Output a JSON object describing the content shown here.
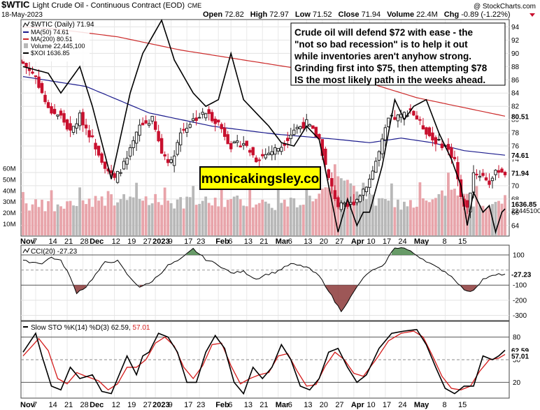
{
  "header": {
    "symbol": "$WTIC",
    "name": "Light Crude Oil - Continuous Contract (EOD)",
    "exchange": "CME",
    "date": "18-May-2023",
    "watermark": "@ StockCharts.com",
    "open_label": "Open",
    "open": "72.82",
    "high_label": "High",
    "high": "72.97",
    "low_label": "Low",
    "low": "71.52",
    "close_label": "Close",
    "close": "71.94",
    "volume_label": "Volume",
    "volume": "22.4M",
    "chg_label": "Chg",
    "chg": "-0.89 (-1.22%)"
  },
  "legend": {
    "main": "$WTIC (Daily) 71.94",
    "ma50": "MA(50) 74.61",
    "ma200": "MA(200) 80.51",
    "volume": "Volume 22,445,100",
    "xoi": "$XOI 1636.85"
  },
  "annotation": {
    "lines": [
      "Crude oil will defend $72 with ease - the",
      "\"not so bad recession\" is to help it out",
      "while inventories aren't anyhow strong.",
      "Grinding first into $75, then attempting $78",
      "IS the most likely path in the weeks ahead."
    ]
  },
  "watermark_box": "monicakingsley.co",
  "colors": {
    "up": "#222222",
    "down": "#c8102e",
    "ma50": "#1a1a8c",
    "ma200": "#cc2b2b",
    "vol_up": "#b8b8b8",
    "vol_down": "#e8a4aa",
    "cci_fill_pos": "#4e8a4e",
    "cci_fill_neg": "#8c3a3a",
    "sto_k": "#000000",
    "sto_d": "#d41c1c"
  },
  "chart_data": [
    {
      "type": "candlestick",
      "name": "price",
      "y_ticks": [
        64,
        66,
        68,
        70,
        72,
        74,
        76,
        78,
        80,
        82,
        84,
        86,
        88,
        90,
        92,
        94
      ],
      "ylim": [
        62.5,
        95
      ],
      "last_labels": {
        "close": "71.94",
        "ma50": "74.61",
        "ma200": "80.51",
        "xoi": "1636.85",
        "volume": "22445100"
      },
      "volume_ticks": [
        "10M",
        "20M",
        "30M",
        "40M",
        "50M",
        "60M"
      ],
      "close_anchors": [
        [
          0,
          88.5
        ],
        [
          4,
          86.5
        ],
        [
          8,
          81.5
        ],
        [
          12,
          80.5
        ],
        [
          15,
          78
        ],
        [
          18,
          80.5
        ],
        [
          22,
          77
        ],
        [
          26,
          73
        ],
        [
          29,
          71
        ],
        [
          33,
          74
        ],
        [
          37,
          79
        ],
        [
          41,
          80
        ],
        [
          44,
          75
        ],
        [
          47,
          73.5
        ],
        [
          50,
          78
        ],
        [
          54,
          80
        ],
        [
          58,
          81
        ],
        [
          62,
          79.5
        ],
        [
          66,
          76
        ],
        [
          70,
          76.5
        ],
        [
          74,
          74
        ],
        [
          78,
          75
        ],
        [
          82,
          76
        ],
        [
          86,
          78.5
        ],
        [
          90,
          79.5
        ],
        [
          94,
          77
        ],
        [
          97,
          71
        ],
        [
          100,
          67
        ],
        [
          103,
          66.8
        ],
        [
          106,
          68
        ],
        [
          110,
          71
        ],
        [
          113,
          75
        ],
        [
          116,
          80
        ],
        [
          120,
          80.5
        ],
        [
          123,
          81.5
        ],
        [
          126,
          79.5
        ],
        [
          130,
          77
        ],
        [
          134,
          76
        ],
        [
          137,
          74
        ],
        [
          139,
          68
        ],
        [
          141,
          66.5
        ],
        [
          143,
          72
        ],
        [
          146,
          71.5
        ],
        [
          148,
          70.5
        ],
        [
          151,
          72.5
        ],
        [
          153,
          71.94
        ]
      ],
      "ma50_anchors": [
        [
          0,
          86.5
        ],
        [
          20,
          85
        ],
        [
          40,
          81
        ],
        [
          60,
          79
        ],
        [
          80,
          77.8
        ],
        [
          100,
          77
        ],
        [
          110,
          76.5
        ],
        [
          120,
          77.2
        ],
        [
          130,
          76.5
        ],
        [
          140,
          75.3
        ],
        [
          153,
          74.61
        ]
      ],
      "ma200_anchors": [
        [
          0,
          94
        ],
        [
          10,
          93.7
        ],
        [
          30,
          92.5
        ],
        [
          50,
          90.5
        ],
        [
          70,
          89
        ],
        [
          90,
          87.5
        ],
        [
          110,
          85.5
        ],
        [
          125,
          83.3
        ],
        [
          140,
          81.8
        ],
        [
          153,
          80.51
        ]
      ],
      "xoi_anchors": [
        [
          0,
          88
        ],
        [
          8,
          87
        ],
        [
          12,
          84
        ],
        [
          18,
          88
        ],
        [
          22,
          82
        ],
        [
          28,
          71
        ],
        [
          34,
          84
        ],
        [
          38,
          90
        ],
        [
          44,
          95
        ],
        [
          48,
          89
        ],
        [
          54,
          84
        ],
        [
          58,
          82
        ],
        [
          62,
          83
        ],
        [
          66,
          90
        ],
        [
          70,
          83
        ],
        [
          74,
          81
        ],
        [
          78,
          79
        ],
        [
          82,
          76.5
        ],
        [
          86,
          76
        ],
        [
          90,
          79
        ],
        [
          94,
          77
        ],
        [
          97,
          70
        ],
        [
          100,
          63
        ],
        [
          103,
          68
        ],
        [
          106,
          64
        ],
        [
          108,
          66
        ],
        [
          110,
          66
        ],
        [
          114,
          73
        ],
        [
          118,
          83
        ],
        [
          121,
          80
        ],
        [
          124,
          82
        ],
        [
          128,
          83
        ],
        [
          132,
          78
        ],
        [
          136,
          74
        ],
        [
          139,
          70
        ],
        [
          141,
          64
        ],
        [
          143,
          69
        ],
        [
          146,
          66
        ],
        [
          148,
          67
        ],
        [
          150,
          63
        ],
        [
          152,
          66
        ],
        [
          153,
          66.5
        ]
      ],
      "volume_anchors": [
        [
          0,
          28
        ],
        [
          10,
          25
        ],
        [
          20,
          31
        ],
        [
          30,
          32
        ],
        [
          40,
          33
        ],
        [
          50,
          29
        ],
        [
          60,
          30
        ],
        [
          70,
          31
        ],
        [
          80,
          28
        ],
        [
          90,
          31
        ],
        [
          100,
          48
        ],
        [
          105,
          45
        ],
        [
          110,
          32
        ],
        [
          120,
          28
        ],
        [
          130,
          30
        ],
        [
          136,
          42
        ],
        [
          140,
          32
        ],
        [
          150,
          28
        ],
        [
          153,
          22
        ]
      ]
    },
    {
      "type": "line",
      "name": "CCI(20)",
      "legend": "CCI(20) -27.23",
      "y_ticks": [
        -300,
        -200,
        -100,
        100
      ],
      "ylim": [
        -330,
        160
      ],
      "last_label": "-27.23",
      "anchors": [
        [
          0,
          60
        ],
        [
          6,
          45
        ],
        [
          9,
          85
        ],
        [
          12,
          60
        ],
        [
          14,
          -5
        ],
        [
          17,
          -150
        ],
        [
          20,
          -110
        ],
        [
          23,
          -30
        ],
        [
          26,
          50
        ],
        [
          30,
          60
        ],
        [
          34,
          -55
        ],
        [
          37,
          -110
        ],
        [
          40,
          -90
        ],
        [
          43,
          -35
        ],
        [
          46,
          30
        ],
        [
          50,
          70
        ],
        [
          54,
          140
        ],
        [
          58,
          70
        ],
        [
          62,
          35
        ],
        [
          66,
          -20
        ],
        [
          70,
          -10
        ],
        [
          74,
          -60
        ],
        [
          77,
          -30
        ],
        [
          80,
          -15
        ],
        [
          85,
          40
        ],
        [
          90,
          20
        ],
        [
          94,
          -40
        ],
        [
          97,
          -135
        ],
        [
          99,
          -210
        ],
        [
          101,
          -270
        ],
        [
          104,
          -180
        ],
        [
          107,
          -80
        ],
        [
          110,
          -10
        ],
        [
          114,
          20
        ],
        [
          118,
          150
        ],
        [
          121,
          145
        ],
        [
          124,
          110
        ],
        [
          128,
          60
        ],
        [
          131,
          20
        ],
        [
          134,
          -10
        ],
        [
          137,
          -60
        ],
        [
          139,
          -110
        ],
        [
          141,
          -145
        ],
        [
          143,
          -130
        ],
        [
          146,
          -60
        ],
        [
          149,
          -40
        ],
        [
          151,
          -30
        ],
        [
          153,
          -27.23
        ]
      ]
    },
    {
      "type": "line",
      "name": "Slow STO",
      "legend": "Slow STO %K(14) %D(3)",
      "k_value": "62.59",
      "d_value": "57.01",
      "y_ticks": [
        20,
        50,
        80
      ],
      "ylim": [
        0,
        100
      ],
      "last_labels": {
        "k": "62.59",
        "d": "57.01"
      },
      "k_anchors": [
        [
          0,
          60
        ],
        [
          4,
          85
        ],
        [
          6,
          55
        ],
        [
          9,
          15
        ],
        [
          12,
          10
        ],
        [
          15,
          40
        ],
        [
          18,
          25
        ],
        [
          22,
          30
        ],
        [
          25,
          8
        ],
        [
          28,
          5
        ],
        [
          31,
          35
        ],
        [
          33,
          55
        ],
        [
          36,
          30
        ],
        [
          38,
          55
        ],
        [
          40,
          60
        ],
        [
          43,
          85
        ],
        [
          46,
          80
        ],
        [
          49,
          60
        ],
        [
          52,
          20
        ],
        [
          55,
          20
        ],
        [
          58,
          60
        ],
        [
          61,
          82
        ],
        [
          64,
          65
        ],
        [
          67,
          20
        ],
        [
          70,
          5
        ],
        [
          73,
          40
        ],
        [
          76,
          25
        ],
        [
          79,
          40
        ],
        [
          82,
          70
        ],
        [
          85,
          50
        ],
        [
          88,
          15
        ],
        [
          91,
          10
        ],
        [
          94,
          25
        ],
        [
          97,
          60
        ],
        [
          100,
          65
        ],
        [
          103,
          40
        ],
        [
          106,
          20
        ],
        [
          109,
          30
        ],
        [
          113,
          65
        ],
        [
          117,
          85
        ],
        [
          121,
          88
        ],
        [
          125,
          90
        ],
        [
          128,
          70
        ],
        [
          131,
          40
        ],
        [
          134,
          12
        ],
        [
          137,
          5
        ],
        [
          140,
          15
        ],
        [
          143,
          15
        ],
        [
          146,
          55
        ],
        [
          149,
          50
        ],
        [
          151,
          55
        ],
        [
          153,
          62.59
        ]
      ],
      "d_anchors": [
        [
          0,
          55
        ],
        [
          5,
          78
        ],
        [
          8,
          62
        ],
        [
          11,
          25
        ],
        [
          14,
          18
        ],
        [
          17,
          33
        ],
        [
          20,
          28
        ],
        [
          24,
          22
        ],
        [
          27,
          10
        ],
        [
          30,
          18
        ],
        [
          33,
          40
        ],
        [
          36,
          40
        ],
        [
          39,
          50
        ],
        [
          42,
          72
        ],
        [
          45,
          80
        ],
        [
          48,
          68
        ],
        [
          51,
          40
        ],
        [
          54,
          25
        ],
        [
          57,
          42
        ],
        [
          60,
          70
        ],
        [
          63,
          72
        ],
        [
          66,
          42
        ],
        [
          69,
          18
        ],
        [
          72,
          25
        ],
        [
          75,
          30
        ],
        [
          78,
          33
        ],
        [
          81,
          55
        ],
        [
          84,
          58
        ],
        [
          87,
          35
        ],
        [
          90,
          15
        ],
        [
          93,
          17
        ],
        [
          96,
          42
        ],
        [
          99,
          60
        ],
        [
          102,
          50
        ],
        [
          105,
          32
        ],
        [
          108,
          28
        ],
        [
          112,
          50
        ],
        [
          116,
          75
        ],
        [
          120,
          85
        ],
        [
          124,
          88
        ],
        [
          127,
          80
        ],
        [
          130,
          55
        ],
        [
          133,
          28
        ],
        [
          136,
          12
        ],
        [
          139,
          10
        ],
        [
          142,
          15
        ],
        [
          145,
          35
        ],
        [
          148,
          50
        ],
        [
          151,
          52
        ],
        [
          153,
          57.01
        ]
      ]
    }
  ],
  "x_axis": {
    "labels": [
      {
        "t": "Nov",
        "i": 0,
        "bold": true
      },
      {
        "t": "7",
        "i": 4
      },
      {
        "t": "14",
        "i": 9
      },
      {
        "t": "21",
        "i": 14
      },
      {
        "t": "28",
        "i": 19
      },
      {
        "t": "Dec",
        "i": 22,
        "bold": true
      },
      {
        "t": "12",
        "i": 29
      },
      {
        "t": "19",
        "i": 34
      },
      {
        "t": "27",
        "i": 39
      },
      {
        "t": "2023",
        "i": 42,
        "bold": true
      },
      {
        "t": "9",
        "i": 47
      },
      {
        "t": "17",
        "i": 52
      },
      {
        "t": "23",
        "i": 56
      },
      {
        "t": "Feb",
        "i": 62,
        "bold": true
      },
      {
        "t": "6",
        "i": 66
      },
      {
        "t": "13",
        "i": 71
      },
      {
        "t": "21",
        "i": 76
      },
      {
        "t": "Mar",
        "i": 81,
        "bold": true
      },
      {
        "t": "6",
        "i": 85
      },
      {
        "t": "13",
        "i": 90
      },
      {
        "t": "20",
        "i": 95
      },
      {
        "t": "27",
        "i": 100
      },
      {
        "t": "Apr",
        "i": 105,
        "bold": true
      },
      {
        "t": "10",
        "i": 110
      },
      {
        "t": "17",
        "i": 115
      },
      {
        "t": "24",
        "i": 120
      },
      {
        "t": "May",
        "i": 125,
        "bold": true
      },
      {
        "t": "8",
        "i": 134
      },
      {
        "t": "15",
        "i": 139
      }
    ]
  }
}
